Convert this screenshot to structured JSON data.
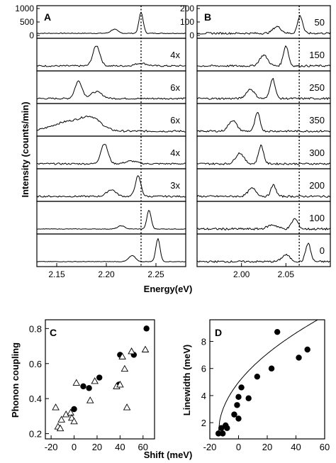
{
  "chart_data": [
    {
      "panel": "A",
      "type": "line",
      "ylabel": "Intensity (counts/min)",
      "xlabel": "Energy(eV)",
      "ylim": [
        0,
        1000
      ],
      "yticks": [
        "0",
        "500",
        "1000"
      ],
      "xlim": [
        2.13,
        2.28
      ],
      "xticks": [
        "2.15",
        "2.20",
        "2.25"
      ],
      "xtick_values": [
        2.15,
        2.2,
        2.25
      ],
      "reference_line_x": 2.235,
      "traces": [
        {
          "multiplier": "",
          "peak_x": 2.235,
          "peak_h": 0.78,
          "peak_w": 0.003,
          "side_x": 2.208,
          "side_h": 0.15,
          "noise": 0.03
        },
        {
          "multiplier": "4x",
          "peak_x": 2.19,
          "peak_h": 0.75,
          "peak_w": 0.005,
          "side_x": 2.235,
          "side_h": 0.1,
          "noise": 0.06
        },
        {
          "multiplier": "6x",
          "peak_x": 2.172,
          "peak_h": 0.65,
          "peak_w": 0.005,
          "side_x": 2.19,
          "side_h": 0.25,
          "noise": 0.06
        },
        {
          "multiplier": "6x",
          "peak_x": 2.185,
          "peak_h": 0.42,
          "peak_w": 0.014,
          "side_x": 2.162,
          "side_h": 0.35,
          "noise": 0.07
        },
        {
          "multiplier": "4x",
          "peak_x": 2.198,
          "peak_h": 0.75,
          "peak_w": 0.005,
          "side_x": 2.225,
          "side_h": 0.1,
          "noise": 0.06
        },
        {
          "multiplier": "3x",
          "peak_x": 2.232,
          "peak_h": 0.75,
          "peak_w": 0.004,
          "side_x": 2.205,
          "side_h": 0.25,
          "noise": 0.06
        },
        {
          "multiplier": "",
          "peak_x": 2.243,
          "peak_h": 0.7,
          "peak_w": 0.003,
          "side_x": 2.215,
          "side_h": 0.12,
          "noise": 0.02
        },
        {
          "multiplier": "",
          "peak_x": 2.252,
          "peak_h": 0.85,
          "peak_w": 0.003,
          "side_x": 2.226,
          "side_h": 0.22,
          "noise": 0.02
        }
      ]
    },
    {
      "panel": "B",
      "type": "line",
      "ylim": [
        0,
        200
      ],
      "yticks": [
        "0",
        "100",
        "200"
      ],
      "xlim": [
        1.95,
        2.1
      ],
      "xticks": [
        "2.00",
        "2.05"
      ],
      "xtick_values": [
        2.0,
        2.05
      ],
      "reference_line_x": 2.065,
      "traces": [
        {
          "label": "50",
          "peak_x": 2.066,
          "peak_h": 0.65,
          "peak_w": 0.004,
          "side_x": 2.04,
          "side_h": 0.25,
          "noise": 0.07
        },
        {
          "label": "150",
          "peak_x": 2.05,
          "peak_h": 0.75,
          "peak_w": 0.004,
          "side_x": 2.025,
          "side_h": 0.4,
          "noise": 0.07
        },
        {
          "label": "250",
          "peak_x": 2.035,
          "peak_h": 0.75,
          "peak_w": 0.004,
          "side_x": 2.01,
          "side_h": 0.35,
          "noise": 0.07
        },
        {
          "label": "350",
          "peak_x": 2.018,
          "peak_h": 0.68,
          "peak_w": 0.004,
          "side_x": 1.99,
          "side_h": 0.4,
          "noise": 0.07
        },
        {
          "label": "300",
          "peak_x": 2.022,
          "peak_h": 0.68,
          "peak_w": 0.004,
          "side_x": 1.998,
          "side_h": 0.4,
          "noise": 0.07
        },
        {
          "label": "200",
          "peak_x": 2.036,
          "peak_h": 0.42,
          "peak_w": 0.004,
          "side_x": 2.012,
          "side_h": 0.3,
          "noise": 0.07
        },
        {
          "label": "100",
          "peak_x": 2.06,
          "peak_h": 0.38,
          "peak_w": 0.005,
          "side_x": 2.035,
          "side_h": 0.15,
          "noise": 0.08
        },
        {
          "label": "0",
          "peak_x": 2.075,
          "peak_h": 0.68,
          "peak_w": 0.004,
          "side_x": 2.05,
          "side_h": 0.25,
          "noise": 0.07
        }
      ]
    },
    {
      "panel": "C",
      "type": "scatter",
      "xlabel": "Shift (meV)",
      "ylabel": "Phonon coupling",
      "xlim": [
        -25,
        70
      ],
      "ylim": [
        0.17,
        0.85
      ],
      "xticks": [
        -20,
        0,
        20,
        40,
        60
      ],
      "yticks": [
        0.2,
        0.4,
        0.6,
        0.8
      ],
      "series": [
        {
          "marker": "filled-circle",
          "points": [
            [
              0,
              0.34
            ],
            [
              8,
              0.47
            ],
            [
              13,
              0.46
            ],
            [
              22,
              0.52
            ],
            [
              39,
              0.48
            ],
            [
              40,
              0.65
            ],
            [
              52,
              0.65
            ],
            [
              63,
              0.8
            ]
          ]
        },
        {
          "marker": "open-triangle",
          "points": [
            [
              -16,
              0.35
            ],
            [
              -14,
              0.24
            ],
            [
              -12,
              0.23
            ],
            [
              -11,
              0.28
            ],
            [
              -7,
              0.31
            ],
            [
              -3,
              0.32
            ],
            [
              -2,
              0.29
            ],
            [
              0,
              0.27
            ],
            [
              2,
              0.49
            ],
            [
              14,
              0.39
            ],
            [
              18,
              0.5
            ],
            [
              37,
              0.47
            ],
            [
              40,
              0.48
            ],
            [
              42,
              0.64
            ],
            [
              44,
              0.57
            ],
            [
              46,
              0.35
            ],
            [
              50,
              0.67
            ],
            [
              62,
              0.68
            ]
          ]
        }
      ]
    },
    {
      "panel": "D",
      "type": "scatter",
      "xlabel": "",
      "ylabel": "Linewidth (meV)",
      "xlim": [
        -20,
        60
      ],
      "ylim": [
        0.8,
        9.6
      ],
      "xticks": [
        -20,
        0,
        20,
        40,
        60
      ],
      "yticks": [
        2,
        4,
        6,
        8
      ],
      "series": [
        {
          "marker": "filled-circle",
          "points": [
            [
              -14,
              1.2
            ],
            [
              -12,
              1.6
            ],
            [
              -11,
              1.2
            ],
            [
              -9,
              1.8
            ],
            [
              -8,
              1.6
            ],
            [
              -3,
              2.6
            ],
            [
              -1,
              3.3
            ],
            [
              0,
              2.3
            ],
            [
              0,
              3.9
            ],
            [
              2,
              4.6
            ],
            [
              7,
              3.8
            ],
            [
              13,
              5.4
            ],
            [
              23,
              6.0
            ],
            [
              27,
              8.7
            ],
            [
              42,
              6.8
            ],
            [
              48,
              7.4
            ]
          ]
        }
      ],
      "fit_curve": {
        "x_start": -14,
        "x_end": 55,
        "scale": 1.01,
        "exponent": 0.5,
        "offset": 1.2
      }
    }
  ]
}
